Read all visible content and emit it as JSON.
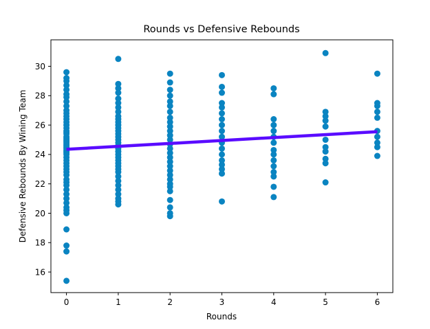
{
  "chart_data": {
    "type": "scatter",
    "title": "Rounds vs Defensive Rebounds",
    "xlabel": "Rounds",
    "ylabel": "Defensive Rebounds By Wining Team",
    "xlim": [
      -0.3,
      6.3
    ],
    "ylim": [
      14.6,
      31.8
    ],
    "xticks": [
      "0",
      "1",
      "2",
      "3",
      "4",
      "5",
      "6"
    ],
    "yticks": [
      "16",
      "18",
      "20",
      "22",
      "24",
      "26",
      "28",
      "30"
    ],
    "grid": false,
    "legend": "none",
    "colors": {
      "points": "#0a84c1",
      "trendline": "#5a0cff"
    },
    "points": {
      "0": [
        15.4,
        17.4,
        17.8,
        18.9,
        20.0,
        20.2,
        20.4,
        20.7,
        21.0,
        21.3,
        21.6,
        21.9,
        22.1,
        22.3,
        22.6,
        22.8,
        23.0,
        23.2,
        23.4,
        23.6,
        23.8,
        24.0,
        24.1,
        24.2,
        24.3,
        24.4,
        24.5,
        24.6,
        24.7,
        24.8,
        24.9,
        25.0,
        25.1,
        25.2,
        25.4,
        25.5,
        25.6,
        25.8,
        26.0,
        26.2,
        26.4,
        26.6,
        26.8,
        27.0,
        27.3,
        27.6,
        27.9,
        28.1,
        28.4,
        28.7,
        29.0,
        29.2,
        29.6
      ],
      "1": [
        20.6,
        20.8,
        21.0,
        21.3,
        21.6,
        21.9,
        22.2,
        22.5,
        22.8,
        23.0,
        23.2,
        23.4,
        23.6,
        23.8,
        24.0,
        24.2,
        24.4,
        24.6,
        24.8,
        25.0,
        25.2,
        25.4,
        25.6,
        25.8,
        26.0,
        26.2,
        26.4,
        26.6,
        26.9,
        27.2,
        27.5,
        27.8,
        28.2,
        28.5,
        28.8,
        30.5
      ],
      "2": [
        19.8,
        20.0,
        20.4,
        20.9,
        21.5,
        21.8,
        22.0,
        22.3,
        22.6,
        22.9,
        23.2,
        23.5,
        23.8,
        24.1,
        24.4,
        24.7,
        25.0,
        25.3,
        25.6,
        25.9,
        26.2,
        26.5,
        26.9,
        27.3,
        27.6,
        28.0,
        28.4,
        28.9,
        29.5
      ],
      "3": [
        20.8,
        22.7,
        23.0,
        23.3,
        23.6,
        24.0,
        24.4,
        24.8,
        25.2,
        25.6,
        26.0,
        26.4,
        26.8,
        27.2,
        27.5,
        28.2,
        28.6,
        29.4
      ],
      "4": [
        21.1,
        21.8,
        22.5,
        22.8,
        23.2,
        23.6,
        24.0,
        24.3,
        24.8,
        25.2,
        25.6,
        26.0,
        26.4,
        28.1,
        28.5
      ],
      "5": [
        22.1,
        23.4,
        23.7,
        24.2,
        24.5,
        25.0,
        25.9,
        26.3,
        26.6,
        26.9,
        30.9
      ],
      "6": [
        23.9,
        24.5,
        24.8,
        25.2,
        25.6,
        26.5,
        26.9,
        27.3,
        27.5,
        29.5
      ]
    },
    "trendline": {
      "x": [
        0,
        6
      ],
      "y": [
        24.35,
        25.55
      ]
    }
  }
}
